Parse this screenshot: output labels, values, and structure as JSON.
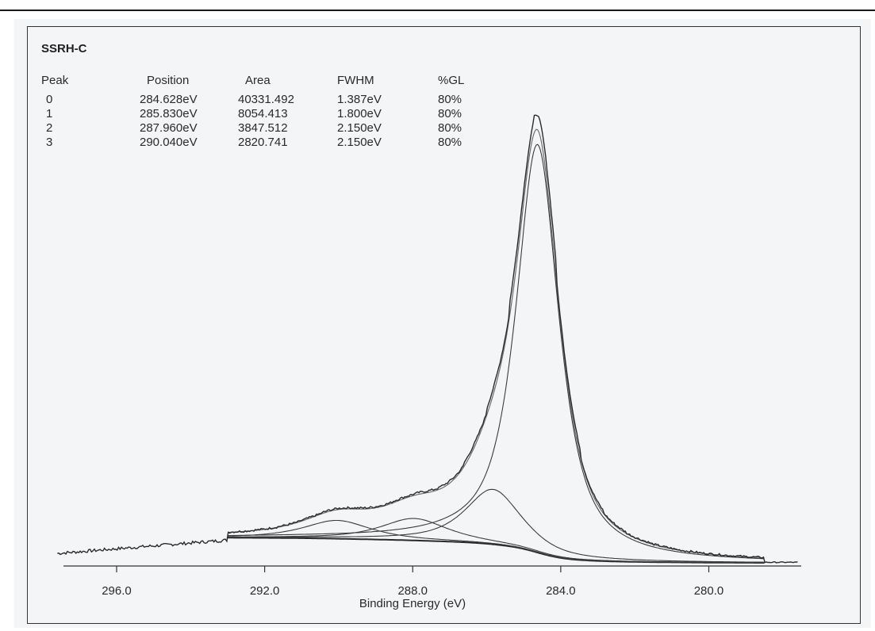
{
  "chart_data": {
    "type": "line",
    "title": "SSRH-C",
    "xlabel": "Binding Energy (eV)",
    "ylabel": "",
    "x_reversed": true,
    "xlim": [
      297.6,
      277.6
    ],
    "x_ticks": [
      296.0,
      292.0,
      288.0,
      284.0,
      280.0
    ],
    "x_tick_labels": [
      "296.0",
      "292.0",
      "288.0",
      "284.0",
      "280.0"
    ],
    "grid": false,
    "legend": "none",
    "table": {
      "headers": [
        "Peak",
        "Position",
        "Area",
        "FWHM",
        "%GL"
      ],
      "rows": [
        [
          "0",
          "284.628eV",
          "40331.492",
          "1.387eV",
          "80%"
        ],
        [
          "1",
          "285.830eV",
          "8054.413",
          "1.800eV",
          "80%"
        ],
        [
          "2",
          "287.960eV",
          "3847.512",
          "2.150eV",
          "80%"
        ],
        [
          "3",
          "290.040eV",
          "2820.741",
          "2.150eV",
          "80%"
        ]
      ]
    },
    "components": [
      {
        "peak": 0,
        "position": 284.628,
        "fwhm": 1.387,
        "height": 78.0
      },
      {
        "peak": 1,
        "position": 285.83,
        "fwhm": 1.8,
        "height": 10.5
      },
      {
        "peak": 2,
        "position": 287.96,
        "fwhm": 2.15,
        "height": 4.2
      },
      {
        "peak": 3,
        "position": 290.04,
        "fwhm": 2.15,
        "height": 3.5
      }
    ],
    "fit_range": [
      293.0,
      278.5
    ],
    "background": {
      "type": "shirley",
      "low_be_level": 0.0,
      "high_be_level": 4.8
    },
    "raw_spectrum_range": [
      297.6,
      277.6
    ],
    "raw_pre_edge_level": 1.8,
    "y_range": [
      0,
      90
    ],
    "colors": {
      "raw": "#2b2b2b",
      "envelope": "#6e6e6e",
      "components": "#3c3c3c",
      "background": "#2a2a2a",
      "axis": "#333333"
    }
  }
}
